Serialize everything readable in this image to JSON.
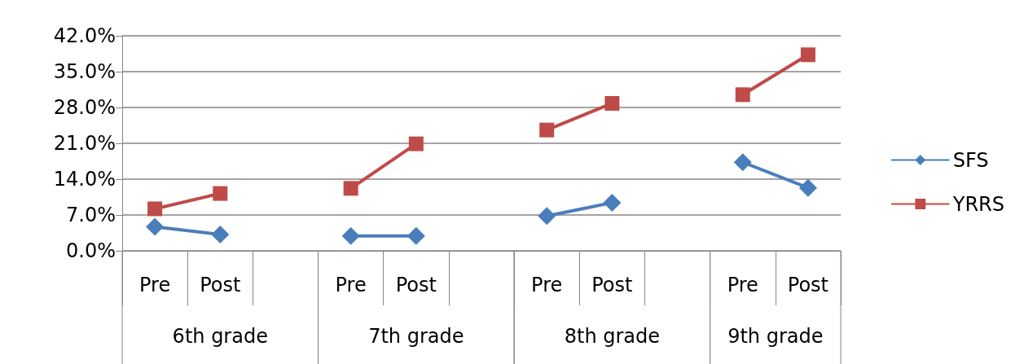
{
  "chart_data": {
    "type": "line",
    "categories": [
      "Pre",
      "Post",
      null,
      "Pre",
      "Post",
      null,
      "Pre",
      "Post",
      null,
      "Pre",
      "Post"
    ],
    "series": [
      {
        "name": "SFS",
        "color": "#4a7ebb",
        "marker": "diamond",
        "values": [
          4.7,
          3.2,
          null,
          2.9,
          2.9,
          null,
          6.8,
          9.4,
          null,
          17.3,
          12.3
        ]
      },
      {
        "name": "YRRS",
        "color": "#be4b48",
        "marker": "square",
        "values": [
          8.2,
          11.2,
          null,
          12.2,
          20.9,
          null,
          23.6,
          28.8,
          null,
          30.5,
          38.3
        ]
      }
    ],
    "ylim": [
      0,
      42
    ],
    "yticks": [
      {
        "value": 0,
        "label": "0.0%"
      },
      {
        "value": 7,
        "label": "7.0%"
      },
      {
        "value": 14,
        "label": "14.0%"
      },
      {
        "value": 21,
        "label": "21.0%"
      },
      {
        "value": 28,
        "label": "28.0%"
      },
      {
        "value": 35,
        "label": "35.0%"
      },
      {
        "value": 42,
        "label": "42.0%"
      }
    ],
    "annotations": [
      "6th grade",
      "7th grade",
      "8th grade",
      "9th grade"
    ],
    "grid": "y",
    "legend": "right"
  }
}
